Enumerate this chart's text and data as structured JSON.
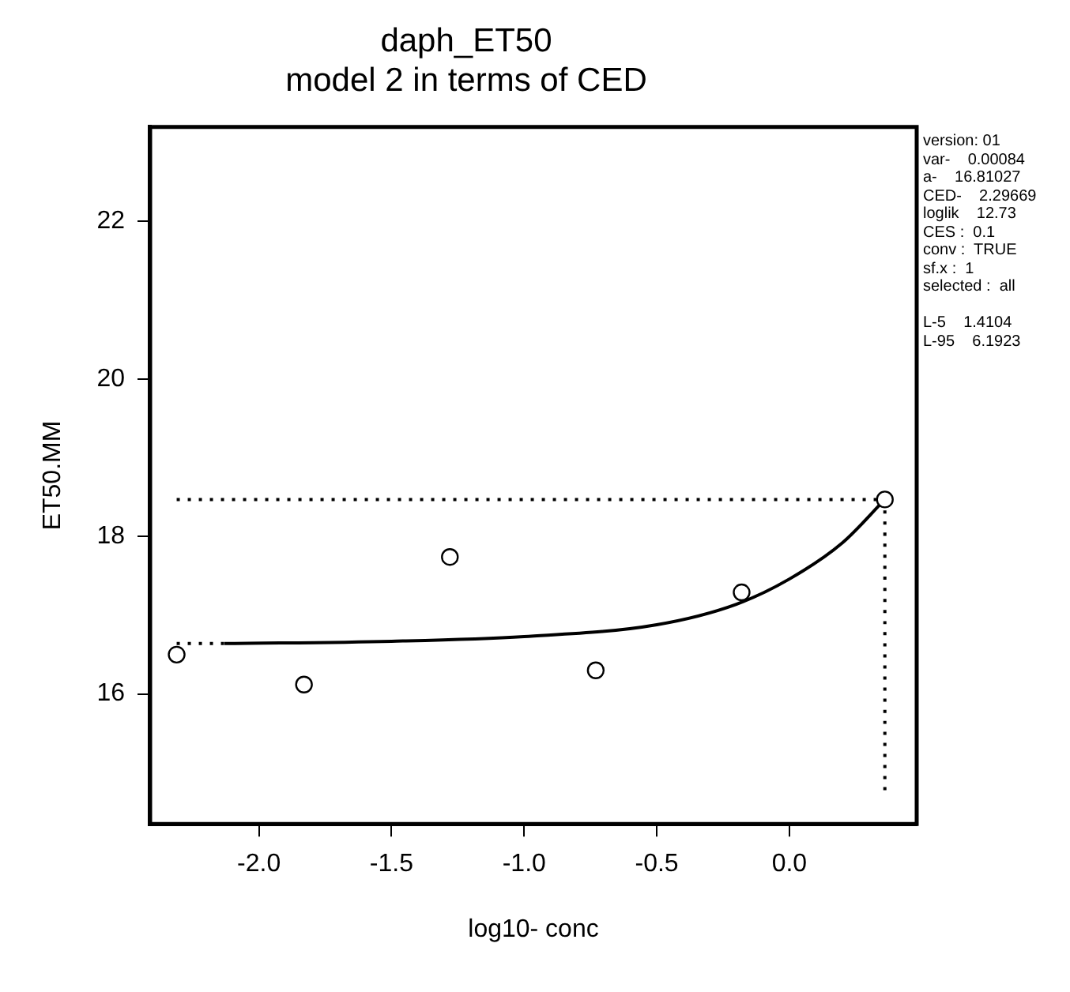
{
  "chart_data": {
    "type": "scatter",
    "title": "daph_ET50",
    "subtitle": "model 2 in terms of CED",
    "xlabel": "log10- conc",
    "ylabel": "ET50.MM",
    "xlim": [
      -2.41,
      0.48
    ],
    "xticks": [
      {
        "value": -2,
        "label": "-2.0"
      },
      {
        "value": -1.5,
        "label": "-1.5"
      },
      {
        "value": -1,
        "label": "-1.0"
      },
      {
        "value": -0.5,
        "label": "-0.5"
      },
      {
        "value": 0,
        "label": "0.0"
      }
    ],
    "ylim": [
      14.35,
      23.2
    ],
    "yticks": [
      16,
      18,
      20,
      22
    ],
    "grid": false,
    "legend": false,
    "series": [
      {
        "color": "#000000",
        "marker": "circle",
        "x": [
          -2.31,
          -1.83,
          -1.28,
          -0.73,
          -0.18,
          0.36
        ],
        "values": [
          16.5,
          16.12,
          17.74,
          16.3,
          17.29,
          18.47
        ]
      },
      {
        "type": "line",
        "color": "#000000",
        "marker": "none",
        "line_style": "solid",
        "x": [
          -2.13,
          -1.5,
          -1.0,
          -0.5,
          -0.2,
          0.0,
          0.2,
          0.36
        ],
        "values": [
          16.64,
          16.67,
          16.73,
          16.88,
          17.14,
          17.46,
          17.92,
          18.47
        ]
      },
      {
        "type": "line",
        "color": "#000000",
        "marker": "none",
        "line_style": "dotted",
        "x": [
          -2.31,
          0.36
        ],
        "values": [
          18.47,
          18.47
        ]
      },
      {
        "type": "line",
        "color": "#000000",
        "marker": "none",
        "line_style": "dotted",
        "x": [
          0.36,
          0.36
        ],
        "values": [
          18.47,
          14.72
        ]
      },
      {
        "type": "line",
        "color": "#000000",
        "marker": "none",
        "line_style": "dotted",
        "x": [
          -2.31,
          -2.13
        ],
        "values": [
          16.64,
          16.64
        ]
      }
    ],
    "annotations": [
      "version: 01",
      "var-    0.00084",
      "a-    16.81027",
      "CED-    2.29669",
      "loglik    12.73",
      "CES :  0.1",
      "conv :  TRUE",
      "sf.x :  1",
      "selected :  all",
      "L-5    1.4104",
      "L-95    6.1923"
    ]
  }
}
